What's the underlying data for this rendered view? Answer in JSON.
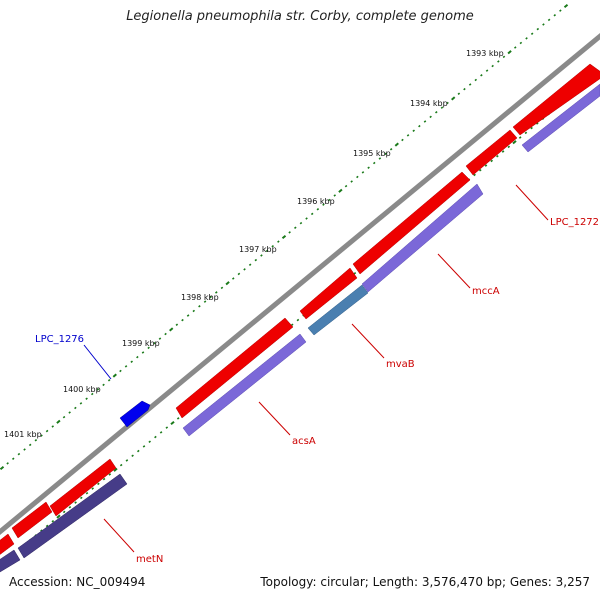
{
  "title": "Legionella pneumophila str. Corby, complete genome",
  "footer": {
    "accession": "Accession: NC_009494",
    "summary": "Topology: circular; Length: 3,576,470 bp; Genes: 3,257"
  },
  "colors": {
    "backbone": "#8a8a8a",
    "forward_gene": "#ee0000",
    "reverse_gene": "#7b68d8",
    "highlight_reverse": "#4a7fb0",
    "dark_reverse": "#463c88",
    "tick": "#1a7a1a",
    "label_red": "#cc0000",
    "label_blue": "#0000cc",
    "selected_gene": "#0000ee"
  },
  "scale": {
    "unit": "kbp",
    "labels": [
      "1393 kbp",
      "1394 kbp",
      "1395 kbp",
      "1396 kbp",
      "1397 kbp",
      "1398 kbp",
      "1399 kbp",
      "1400 kbp",
      "1401 kbp"
    ]
  },
  "genes": [
    {
      "name": "LPC_1272",
      "strand": "forward",
      "color": "red"
    },
    {
      "name": "mccA",
      "strand": "reverse",
      "color": "red"
    },
    {
      "name": "mvaB",
      "strand": "reverse",
      "color": "red"
    },
    {
      "name": "acsA",
      "strand": "reverse",
      "color": "red"
    },
    {
      "name": "metN",
      "strand": "reverse",
      "color": "red"
    },
    {
      "name": "LPC_1276",
      "strand": "forward",
      "color": "blue"
    }
  ]
}
